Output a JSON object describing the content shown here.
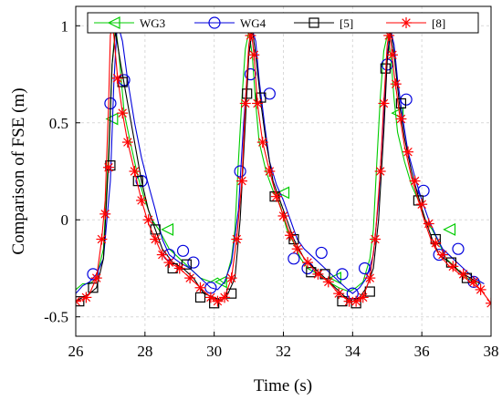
{
  "chart_data": {
    "type": "line",
    "xlabel": "Time (s)",
    "ylabel": "Comparison of FSE (m)",
    "xlim": [
      26,
      38
    ],
    "ylim": [
      -0.6,
      1.1
    ],
    "xticks": [
      26,
      28,
      30,
      32,
      34,
      36,
      38
    ],
    "yticks": [
      -0.5,
      0,
      0.5,
      1
    ],
    "ytick_labels": [
      "-0.5",
      "0",
      "0.5",
      "1"
    ],
    "grid": true,
    "legend_position": "top",
    "series": [
      {
        "name": "WG3",
        "color": "#00cc00",
        "marker": "triangle-left",
        "x": [
          26,
          26.2,
          26.4,
          26.6,
          26.8,
          26.95,
          27.05,
          27.15,
          27.25,
          27.4,
          27.6,
          27.8,
          28.0,
          28.2,
          28.4,
          28.7,
          29.0,
          29.3,
          29.6,
          29.9,
          30.1,
          30.3,
          30.5,
          30.6,
          30.7,
          30.8,
          30.9,
          31.0,
          31.1,
          31.2,
          31.3,
          31.5,
          31.7,
          31.9,
          32.1,
          32.3,
          32.5,
          32.7,
          33.0,
          33.3,
          33.6,
          33.9,
          34.1,
          34.3,
          34.5,
          34.6,
          34.7,
          34.8,
          34.9,
          35.0,
          35.1,
          35.2,
          35.3,
          35.5,
          35.7,
          35.9,
          36.1,
          36.3,
          36.5,
          36.7,
          37.0,
          37.3,
          37.6
        ],
        "y": [
          -0.36,
          -0.33,
          -0.33,
          -0.3,
          -0.15,
          0.35,
          0.8,
          1.0,
          0.85,
          0.55,
          0.38,
          0.22,
          0.1,
          0.0,
          -0.05,
          -0.15,
          -0.2,
          -0.25,
          -0.3,
          -0.32,
          -0.3,
          -0.33,
          -0.2,
          -0.05,
          0.3,
          0.62,
          0.88,
          0.97,
          0.85,
          0.6,
          0.4,
          0.25,
          0.15,
          0.08,
          -0.05,
          -0.12,
          -0.2,
          -0.25,
          -0.28,
          -0.32,
          -0.35,
          -0.37,
          -0.35,
          -0.32,
          -0.2,
          -0.05,
          0.3,
          0.63,
          0.87,
          0.95,
          0.85,
          0.62,
          0.45,
          0.3,
          0.18,
          0.1,
          0.0,
          -0.05,
          -0.12,
          -0.2,
          -0.25,
          -0.3,
          -0.33
        ],
        "marker_x": [
          27.05,
          28.65,
          30.2,
          32.0,
          33.5,
          35.3,
          36.8
        ],
        "marker_y": [
          0.52,
          -0.05,
          -0.32,
          0.14,
          -0.3,
          0.55,
          -0.05
        ]
      },
      {
        "name": "WG4",
        "color": "#0000dd",
        "marker": "circle",
        "x": [
          26,
          26.2,
          26.4,
          26.6,
          26.8,
          27.0,
          27.1,
          27.2,
          27.35,
          27.5,
          27.7,
          27.9,
          28.1,
          28.3,
          28.5,
          28.7,
          29.0,
          29.3,
          29.6,
          29.9,
          30.1,
          30.3,
          30.5,
          30.7,
          30.85,
          31.0,
          31.1,
          31.2,
          31.3,
          31.45,
          31.6,
          31.8,
          32.0,
          32.2,
          32.4,
          32.6,
          32.9,
          33.2,
          33.5,
          33.8,
          34.0,
          34.2,
          34.4,
          34.6,
          34.75,
          34.9,
          35.0,
          35.1,
          35.2,
          35.3,
          35.45,
          35.6,
          35.8,
          36.0,
          36.2,
          36.4,
          36.6,
          36.9,
          37.2,
          37.5,
          37.8
        ],
        "y": [
          -0.38,
          -0.34,
          -0.32,
          -0.28,
          -0.2,
          0.2,
          0.7,
          1.02,
          0.92,
          0.72,
          0.5,
          0.32,
          0.18,
          0.05,
          -0.1,
          -0.18,
          -0.22,
          -0.25,
          -0.3,
          -0.35,
          -0.36,
          -0.32,
          -0.22,
          0.05,
          0.5,
          0.85,
          0.98,
          0.92,
          0.72,
          0.5,
          0.3,
          0.18,
          0.1,
          0.0,
          -0.1,
          -0.15,
          -0.2,
          -0.25,
          -0.3,
          -0.35,
          -0.38,
          -0.35,
          -0.3,
          -0.18,
          0.1,
          0.55,
          0.85,
          0.98,
          0.9,
          0.72,
          0.52,
          0.35,
          0.22,
          0.1,
          0.0,
          -0.08,
          -0.15,
          -0.2,
          -0.25,
          -0.3,
          -0.33
        ],
        "marker_x": [
          26.5,
          27.0,
          27.4,
          27.9,
          28.7,
          29.1,
          29.4,
          29.9,
          30.75,
          31.05,
          31.6,
          32.3,
          32.7,
          33.1,
          33.7,
          34.0,
          34.35,
          35.0,
          35.55,
          36.05,
          36.5,
          37.05,
          37.5
        ],
        "marker_y": [
          -0.28,
          0.6,
          0.72,
          0.2,
          -0.18,
          -0.16,
          -0.22,
          -0.35,
          0.25,
          0.75,
          0.65,
          -0.2,
          -0.25,
          -0.17,
          -0.28,
          -0.38,
          -0.25,
          0.8,
          0.62,
          0.15,
          -0.18,
          -0.15,
          -0.32
        ]
      },
      {
        "name": "[5]",
        "color": "#000000",
        "marker": "square",
        "x": [
          26,
          26.2,
          26.4,
          26.6,
          26.8,
          26.95,
          27.05,
          27.15,
          27.3,
          27.5,
          27.7,
          27.9,
          28.1,
          28.3,
          28.5,
          28.8,
          29.1,
          29.4,
          29.7,
          30.0,
          30.2,
          30.4,
          30.6,
          30.75,
          30.9,
          31.0,
          31.1,
          31.2,
          31.35,
          31.5,
          31.7,
          31.9,
          32.1,
          32.3,
          32.6,
          32.9,
          33.2,
          33.5,
          33.8,
          34.0,
          34.2,
          34.4,
          34.6,
          34.75,
          34.9,
          35.0,
          35.1,
          35.2,
          35.35,
          35.5,
          35.7,
          35.9,
          36.1,
          36.3,
          36.5,
          36.8,
          37.1,
          37.4,
          37.7
        ],
        "y": [
          -0.42,
          -0.4,
          -0.38,
          -0.35,
          -0.2,
          0.3,
          0.8,
          0.97,
          0.8,
          0.6,
          0.4,
          0.2,
          0.05,
          -0.05,
          -0.15,
          -0.22,
          -0.25,
          -0.3,
          -0.38,
          -0.4,
          -0.42,
          -0.38,
          -0.3,
          0.0,
          0.5,
          0.85,
          0.98,
          0.85,
          0.6,
          0.4,
          0.2,
          0.1,
          0.0,
          -0.1,
          -0.2,
          -0.25,
          -0.3,
          -0.35,
          -0.4,
          -0.42,
          -0.4,
          -0.35,
          -0.25,
          0.0,
          0.45,
          0.82,
          0.97,
          0.85,
          0.6,
          0.42,
          0.25,
          0.12,
          0.0,
          -0.1,
          -0.18,
          -0.22,
          -0.27,
          -0.3,
          -0.33
        ],
        "marker_x": [
          26.1,
          26.5,
          27.0,
          27.35,
          27.8,
          28.3,
          28.8,
          29.2,
          29.6,
          30.0,
          30.5,
          30.95,
          31.35,
          31.75,
          32.3,
          32.8,
          33.2,
          33.7,
          34.1,
          34.5,
          34.95,
          35.4,
          35.9,
          36.4,
          36.85,
          37.3
        ],
        "marker_y": [
          -0.42,
          -0.35,
          0.28,
          0.71,
          0.2,
          -0.05,
          -0.25,
          -0.23,
          -0.4,
          -0.43,
          -0.38,
          0.65,
          0.63,
          0.12,
          -0.1,
          -0.27,
          -0.28,
          -0.42,
          -0.43,
          -0.37,
          0.78,
          0.6,
          0.1,
          -0.1,
          -0.22,
          -0.3
        ]
      },
      {
        "name": "[8]",
        "color": "#ff0000",
        "marker": "asterisk",
        "x": [
          26,
          26.2,
          26.4,
          26.6,
          26.75,
          26.85,
          26.95,
          27.0,
          27.05,
          27.1,
          27.2,
          27.35,
          27.5,
          27.7,
          27.9,
          28.1,
          28.3,
          28.5,
          28.7,
          29.0,
          29.3,
          29.6,
          29.9,
          30.1,
          30.3,
          30.5,
          30.65,
          30.8,
          30.9,
          31.0,
          31.05,
          31.1,
          31.15,
          31.25,
          31.4,
          31.6,
          31.8,
          32.0,
          32.2,
          32.4,
          32.7,
          33.0,
          33.3,
          33.6,
          33.9,
          34.1,
          34.3,
          34.5,
          34.65,
          34.8,
          34.9,
          35.0,
          35.05,
          35.1,
          35.2,
          35.35,
          35.5,
          35.7,
          35.9,
          36.1,
          36.3,
          36.5,
          36.8,
          37.1,
          37.4,
          37.7,
          38.0
        ],
        "y": [
          -0.42,
          -0.41,
          -0.38,
          -0.3,
          -0.1,
          0.1,
          0.6,
          0.95,
          1.0,
          0.95,
          0.75,
          0.55,
          0.4,
          0.25,
          0.1,
          -0.02,
          -0.1,
          -0.18,
          -0.22,
          -0.25,
          -0.3,
          -0.35,
          -0.4,
          -0.42,
          -0.4,
          -0.3,
          -0.1,
          0.2,
          0.6,
          0.9,
          0.96,
          0.93,
          0.85,
          0.6,
          0.4,
          0.25,
          0.12,
          0.02,
          -0.08,
          -0.15,
          -0.22,
          -0.28,
          -0.32,
          -0.38,
          -0.42,
          -0.42,
          -0.4,
          -0.3,
          -0.1,
          0.25,
          0.6,
          0.9,
          0.96,
          0.92,
          0.75,
          0.55,
          0.38,
          0.22,
          0.1,
          -0.02,
          -0.12,
          -0.18,
          -0.24,
          -0.28,
          -0.32,
          -0.36,
          -0.43
        ],
        "marker_x": [
          26.0,
          26.3,
          26.6,
          26.75,
          26.85,
          26.95,
          27.05,
          27.2,
          27.35,
          27.5,
          27.7,
          27.9,
          28.1,
          28.3,
          28.5,
          28.7,
          29.0,
          29.3,
          29.6,
          29.9,
          30.1,
          30.3,
          30.5,
          30.65,
          30.8,
          30.9,
          31.05,
          31.15,
          31.25,
          31.4,
          31.6,
          31.8,
          32.0,
          32.2,
          32.4,
          32.7,
          33.0,
          33.3,
          33.6,
          33.9,
          34.1,
          34.3,
          34.5,
          34.65,
          34.8,
          34.9,
          35.05,
          35.15,
          35.25,
          35.4,
          35.6,
          35.8,
          36.0,
          36.2,
          36.4,
          36.6,
          36.9,
          37.2,
          37.5,
          37.7,
          38.0
        ],
        "marker_y": [
          -0.42,
          -0.4,
          -0.3,
          -0.1,
          0.03,
          0.27,
          1.0,
          0.73,
          0.55,
          0.4,
          0.25,
          0.1,
          0.0,
          -0.1,
          -0.18,
          -0.22,
          -0.25,
          -0.3,
          -0.35,
          -0.4,
          -0.42,
          -0.4,
          -0.3,
          -0.1,
          0.2,
          0.6,
          0.95,
          0.85,
          0.6,
          0.4,
          0.25,
          0.12,
          0.02,
          -0.08,
          -0.15,
          -0.22,
          -0.28,
          -0.32,
          -0.38,
          -0.42,
          -0.42,
          -0.4,
          -0.3,
          -0.1,
          0.25,
          0.6,
          0.95,
          0.85,
          0.7,
          0.52,
          0.35,
          0.2,
          0.08,
          -0.02,
          -0.12,
          -0.18,
          -0.24,
          -0.28,
          -0.32,
          -0.36,
          -0.43
        ]
      }
    ]
  }
}
